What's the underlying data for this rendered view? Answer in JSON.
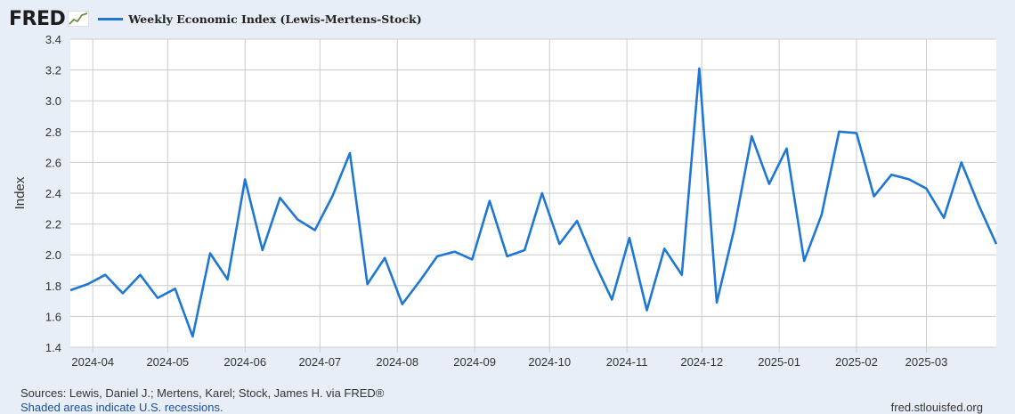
{
  "header": {
    "logo_text": "FRED",
    "logo_icon": "fred-line-graph-icon",
    "legend_label": "Weekly Economic Index (Lewis-Mertens-Stock)"
  },
  "colors": {
    "series": "#1f77d4",
    "plot_background": "#ffffff",
    "page_background": "#e8eef7",
    "grid": "#cccccc"
  },
  "chart_data": {
    "type": "line",
    "ylabel": "Index",
    "ylim": [
      1.4,
      3.4
    ],
    "yticks": [
      "1.4",
      "1.6",
      "1.8",
      "2.0",
      "2.2",
      "2.4",
      "2.6",
      "2.8",
      "3.0",
      "3.2",
      "3.4"
    ],
    "xlim": [
      "2024-03-23",
      "2025-03-29"
    ],
    "xticks": [
      "2024-04",
      "2024-05",
      "2024-06",
      "2024-07",
      "2024-08",
      "2024-09",
      "2024-10",
      "2024-11",
      "2024-12",
      "2025-01",
      "2025-02",
      "2025-03"
    ],
    "grid": true,
    "series": [
      {
        "name": "Weekly Economic Index (Lewis-Mertens-Stock)",
        "x": [
          "2024-03-23",
          "2024-03-30",
          "2024-04-06",
          "2024-04-13",
          "2024-04-20",
          "2024-04-27",
          "2024-05-04",
          "2024-05-11",
          "2024-05-18",
          "2024-05-25",
          "2024-06-01",
          "2024-06-08",
          "2024-06-15",
          "2024-06-22",
          "2024-06-29",
          "2024-07-06",
          "2024-07-13",
          "2024-07-20",
          "2024-07-27",
          "2024-08-03",
          "2024-08-10",
          "2024-08-17",
          "2024-08-24",
          "2024-08-31",
          "2024-09-07",
          "2024-09-14",
          "2024-09-21",
          "2024-09-28",
          "2024-10-05",
          "2024-10-12",
          "2024-10-19",
          "2024-10-26",
          "2024-11-02",
          "2024-11-09",
          "2024-11-16",
          "2024-11-23",
          "2024-11-30",
          "2024-12-07",
          "2024-12-14",
          "2024-12-21",
          "2024-12-28",
          "2025-01-04",
          "2025-01-11",
          "2025-01-18",
          "2025-01-25",
          "2025-02-01",
          "2025-02-08",
          "2025-02-15",
          "2025-02-22",
          "2025-03-01",
          "2025-03-08",
          "2025-03-15",
          "2025-03-22",
          "2025-03-29"
        ],
        "values": [
          1.77,
          1.81,
          1.87,
          1.75,
          1.87,
          1.72,
          1.78,
          1.47,
          2.01,
          1.84,
          2.49,
          2.03,
          2.37,
          2.23,
          2.16,
          2.38,
          2.66,
          1.81,
          1.98,
          1.68,
          1.83,
          1.99,
          2.02,
          1.97,
          2.35,
          1.99,
          2.03,
          2.4,
          2.07,
          2.22,
          1.95,
          1.71,
          2.11,
          1.64,
          2.04,
          1.87,
          3.21,
          1.69,
          2.17,
          2.77,
          2.46,
          2.69,
          1.96,
          2.26,
          2.8,
          2.79,
          2.38,
          2.52,
          2.49,
          2.43,
          2.24,
          2.6,
          2.32,
          2.07
        ]
      }
    ]
  },
  "footer": {
    "sources": "Sources: Lewis, Daniel J.; Mertens, Karel; Stock, James H. via FRED®",
    "shaded": "Shaded areas indicate U.S. recessions.",
    "url": "fred.stlouisfed.org"
  }
}
